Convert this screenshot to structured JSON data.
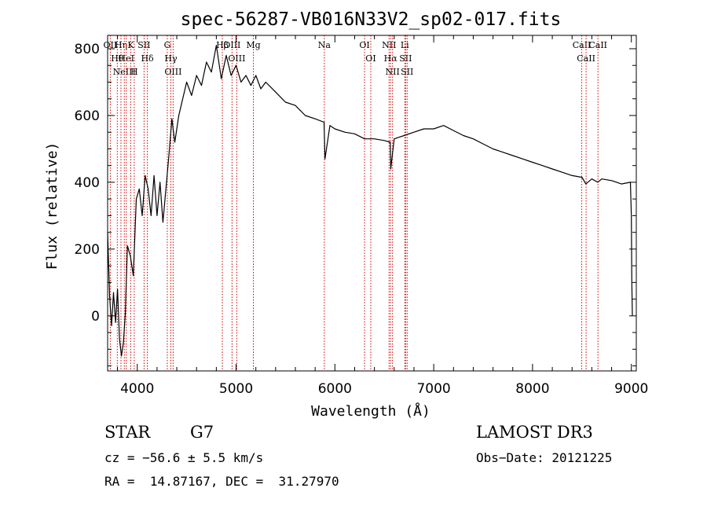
{
  "chart_data": {
    "type": "line",
    "title": "spec-56287-VB016N33V2_sp02-017.fits",
    "xlabel": "Wavelength (Å)",
    "ylabel": "Flux (relative)",
    "xlim": [
      3700,
      9050
    ],
    "ylim": [
      -165,
      840
    ],
    "xticks": [
      4000,
      5000,
      6000,
      7000,
      8000,
      9000
    ],
    "yticks": [
      0,
      200,
      400,
      600,
      800
    ],
    "series": [
      {
        "name": "spectrum",
        "color": "#000000",
        "x": [
          3700,
          3720,
          3740,
          3760,
          3780,
          3800,
          3820,
          3840,
          3860,
          3880,
          3900,
          3930,
          3960,
          3990,
          4020,
          4050,
          4080,
          4110,
          4140,
          4170,
          4200,
          4230,
          4260,
          4290,
          4320,
          4350,
          4380,
          4420,
          4460,
          4500,
          4550,
          4600,
          4650,
          4700,
          4750,
          4800,
          4850,
          4900,
          4950,
          5000,
          5050,
          5100,
          5150,
          5200,
          5250,
          5300,
          5400,
          5500,
          5600,
          5700,
          5800,
          5890,
          5900,
          5950,
          6000,
          6100,
          6200,
          6300,
          6400,
          6500,
          6560,
          6565,
          6600,
          6700,
          6800,
          6900,
          7000,
          7100,
          7200,
          7300,
          7400,
          7500,
          7600,
          7700,
          7800,
          7900,
          8000,
          8100,
          8200,
          8300,
          8400,
          8500,
          8540,
          8600,
          8660,
          8700,
          8800,
          8900,
          8990,
          9000,
          9005,
          9010
        ],
        "y": [
          250,
          60,
          -30,
          70,
          -20,
          80,
          -70,
          -120,
          -80,
          10,
          210,
          180,
          120,
          350,
          380,
          300,
          420,
          380,
          300,
          420,
          300,
          400,
          280,
          380,
          480,
          590,
          520,
          600,
          650,
          700,
          660,
          720,
          690,
          760,
          730,
          810,
          710,
          780,
          720,
          750,
          700,
          720,
          690,
          720,
          680,
          700,
          670,
          640,
          630,
          600,
          590,
          580,
          470,
          570,
          560,
          550,
          545,
          530,
          530,
          525,
          520,
          440,
          530,
          540,
          550,
          560,
          560,
          570,
          555,
          540,
          530,
          515,
          500,
          490,
          480,
          470,
          460,
          450,
          440,
          430,
          420,
          415,
          395,
          410,
          400,
          410,
          405,
          395,
          400,
          300,
          100,
          0
        ]
      }
    ],
    "spectral_lines": [
      {
        "wave": 3727,
        "labels": [
          "OII"
        ]
      },
      {
        "wave": 3798,
        "labels": [
          "Hθ"
        ]
      },
      {
        "wave": 3835,
        "labels": [
          "Hη"
        ]
      },
      {
        "wave": 3869,
        "labels": [
          "NeIII"
        ]
      },
      {
        "wave": 3889,
        "labels": [
          "HeI"
        ]
      },
      {
        "wave": 3934,
        "labels": [
          "K"
        ]
      },
      {
        "wave": 3969,
        "labels": [
          "H"
        ]
      },
      {
        "wave": 4069,
        "labels": [
          "SII"
        ]
      },
      {
        "wave": 4102,
        "labels": [
          "Hδ"
        ]
      },
      {
        "wave": 4304,
        "labels": [
          "G"
        ]
      },
      {
        "wave": 4340,
        "labels": [
          "Hγ"
        ]
      },
      {
        "wave": 4363,
        "labels": [
          "OIII"
        ]
      },
      {
        "wave": 4861,
        "labels": [
          "Hβ"
        ]
      },
      {
        "wave": 4959,
        "labels": [
          "OIII"
        ]
      },
      {
        "wave": 5007,
        "labels": [
          "OIII"
        ]
      },
      {
        "wave": 5175,
        "labels": [
          "Mg"
        ]
      },
      {
        "wave": 5893,
        "labels": [
          "Na"
        ]
      },
      {
        "wave": 6300,
        "labels": [
          "OI"
        ]
      },
      {
        "wave": 6363,
        "labels": [
          "OI"
        ]
      },
      {
        "wave": 6548,
        "labels": [
          "NII"
        ]
      },
      {
        "wave": 6563,
        "labels": [
          "Hα"
        ]
      },
      {
        "wave": 6583,
        "labels": [
          "NII"
        ]
      },
      {
        "wave": 6707,
        "labels": [
          "Li"
        ]
      },
      {
        "wave": 6716,
        "labels": [
          "SII"
        ]
      },
      {
        "wave": 6731,
        "labels": [
          "SII"
        ]
      },
      {
        "wave": 8498,
        "labels": [
          "CaII"
        ]
      },
      {
        "wave": 8542,
        "labels": [
          "CaII"
        ]
      },
      {
        "wave": 8662,
        "labels": [
          "CaII"
        ]
      }
    ]
  },
  "footer": {
    "class": "STAR",
    "subclass": "G7",
    "survey": "LAMOST DR3",
    "cz": "cz = −56.6 ± 5.5 km/s",
    "obs_date": "Obs−Date: 20121225",
    "coords": "RA =  14.87167, DEC =  31.27970"
  }
}
